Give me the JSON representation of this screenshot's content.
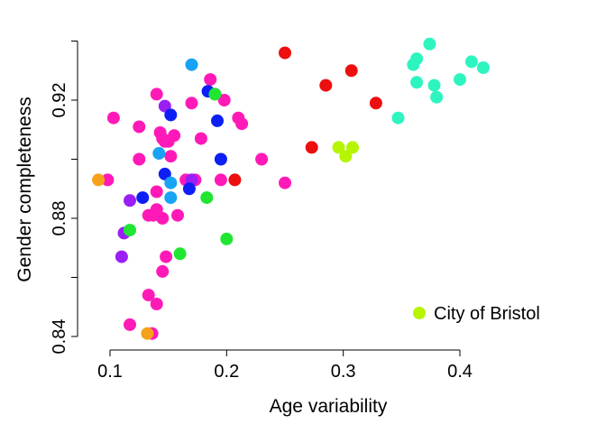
{
  "chart_data": {
    "type": "scatter",
    "title": "",
    "xlabel": "Age variability",
    "ylabel": "Gender completeness",
    "xlim": [
      0.085,
      0.425
    ],
    "ylim": [
      0.84,
      0.94
    ],
    "x_ticks": [
      0.1,
      0.2,
      0.3,
      0.4
    ],
    "x_tick_labels": [
      "0.1",
      "0.2",
      "0.3",
      "0.4"
    ],
    "y_ticks": [
      0.84,
      0.88,
      0.92
    ],
    "y_tick_labels": [
      "0.84",
      "0.88",
      "0.92"
    ],
    "grid": false,
    "legend": {
      "position": "bottom-right",
      "entries": [
        {
          "label": "City of Bristol",
          "color": "#b5f500"
        }
      ]
    },
    "series": [
      {
        "color": "#ff1ab8",
        "points": [
          [
            0.103,
            0.914
          ],
          [
            0.098,
            0.893
          ],
          [
            0.125,
            0.911
          ],
          [
            0.125,
            0.9
          ],
          [
            0.14,
            0.922
          ],
          [
            0.143,
            0.909
          ],
          [
            0.145,
            0.907
          ],
          [
            0.15,
            0.906
          ],
          [
            0.155,
            0.908
          ],
          [
            0.152,
            0.901
          ],
          [
            0.147,
            0.906
          ],
          [
            0.14,
            0.889
          ],
          [
            0.137,
            0.881
          ],
          [
            0.133,
            0.881
          ],
          [
            0.14,
            0.883
          ],
          [
            0.145,
            0.88
          ],
          [
            0.158,
            0.881
          ],
          [
            0.148,
            0.867
          ],
          [
            0.145,
            0.862
          ],
          [
            0.133,
            0.854
          ],
          [
            0.14,
            0.851
          ],
          [
            0.117,
            0.844
          ],
          [
            0.136,
            0.841
          ],
          [
            0.17,
            0.919
          ],
          [
            0.186,
            0.927
          ],
          [
            0.19,
            0.922
          ],
          [
            0.198,
            0.92
          ],
          [
            0.178,
            0.907
          ],
          [
            0.165,
            0.893
          ],
          [
            0.173,
            0.893
          ],
          [
            0.195,
            0.893
          ],
          [
            0.21,
            0.914
          ],
          [
            0.213,
            0.912
          ],
          [
            0.23,
            0.9
          ],
          [
            0.25,
            0.892
          ]
        ]
      },
      {
        "color": "#9b1ff5",
        "points": [
          [
            0.147,
            0.918
          ],
          [
            0.117,
            0.886
          ],
          [
            0.112,
            0.875
          ],
          [
            0.11,
            0.867
          ],
          [
            0.17,
            0.893
          ]
        ]
      },
      {
        "color": "#0d1ff5",
        "points": [
          [
            0.184,
            0.923
          ],
          [
            0.152,
            0.915
          ],
          [
            0.192,
            0.913
          ],
          [
            0.195,
            0.9
          ],
          [
            0.147,
            0.895
          ],
          [
            0.168,
            0.89
          ],
          [
            0.128,
            0.887
          ]
        ]
      },
      {
        "color": "#18a3f5",
        "points": [
          [
            0.17,
            0.932
          ],
          [
            0.142,
            0.902
          ],
          [
            0.152,
            0.892
          ],
          [
            0.152,
            0.887
          ]
        ]
      },
      {
        "color": "#ed0e0e",
        "points": [
          [
            0.25,
            0.936
          ],
          [
            0.307,
            0.93
          ],
          [
            0.285,
            0.925
          ],
          [
            0.328,
            0.919
          ],
          [
            0.273,
            0.904
          ],
          [
            0.207,
            0.893
          ]
        ]
      },
      {
        "color": "#20e632",
        "points": [
          [
            0.19,
            0.922
          ],
          [
            0.183,
            0.887
          ],
          [
            0.117,
            0.876
          ],
          [
            0.2,
            0.873
          ],
          [
            0.16,
            0.868
          ]
        ]
      },
      {
        "color": "#b5f500",
        "points": [
          [
            0.296,
            0.904
          ],
          [
            0.308,
            0.904
          ],
          [
            0.302,
            0.901
          ]
        ]
      },
      {
        "color": "#2ef5c0",
        "points": [
          [
            0.374,
            0.939
          ],
          [
            0.363,
            0.934
          ],
          [
            0.41,
            0.933
          ],
          [
            0.42,
            0.931
          ],
          [
            0.36,
            0.932
          ],
          [
            0.363,
            0.926
          ],
          [
            0.4,
            0.927
          ],
          [
            0.378,
            0.925
          ],
          [
            0.38,
            0.921
          ],
          [
            0.347,
            0.914
          ]
        ]
      },
      {
        "color": "#f5a21a",
        "points": [
          [
            0.09,
            0.893
          ],
          [
            0.132,
            0.841
          ]
        ]
      }
    ]
  }
}
